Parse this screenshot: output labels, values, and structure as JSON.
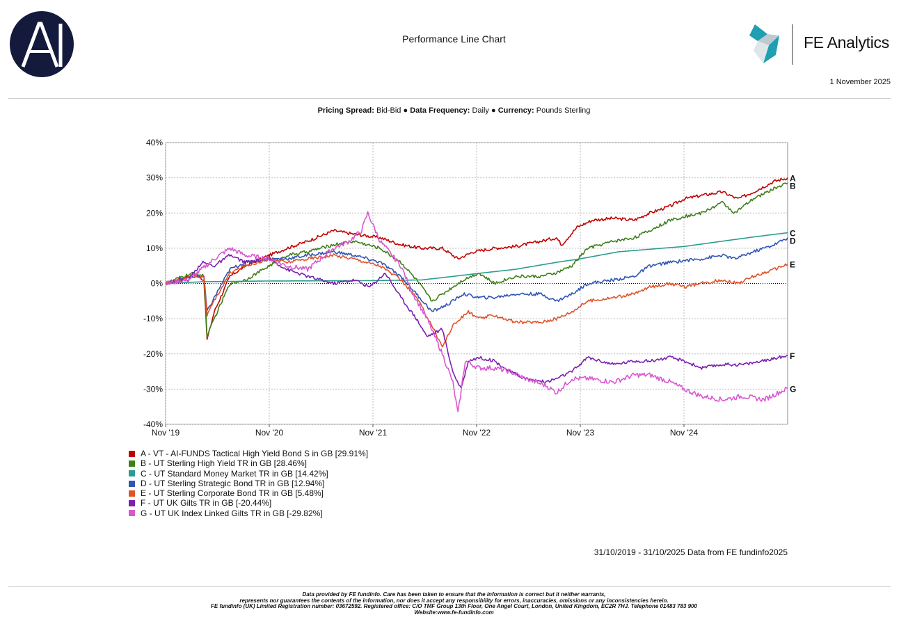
{
  "header": {
    "title": "Performance Line Chart",
    "brand": "FE Analytics",
    "date": "1 November 2025"
  },
  "subtitle": {
    "spread_label": "Pricing Spread:",
    "spread_value": "Bid-Bid",
    "freq_label": "Data Frequency:",
    "freq_value": "Daily",
    "currency_label": "Currency:",
    "currency_value": "Pounds Sterling",
    "separator": "●"
  },
  "range_note": "31/10/2019 - 31/10/2025 Data from FE fundinfo2025",
  "footer": {
    "line1": "Data provided by FE fundinfo. Care has been taken to ensure that the information is correct but it neither warrants,",
    "line2": "represents nor guarantees the contents of the information, nor does it accept any responsibility for errors, inaccuracies, omissions or any inconsistencies herein.",
    "line3": "FE fundinfo (UK) Limited Registration number: 03672592. Registered office: C/O TMF Group 13th Floor, One Angel Court, London, United Kingdom, EC2R 7HJ. Telephone 01483 783 900",
    "line4": "Website:www.fe-fundinfo.com"
  },
  "chart_data": {
    "type": "line",
    "title": "Performance Line Chart",
    "xlabel": "",
    "ylabel": "",
    "xlim": [
      2019.83,
      2025.83
    ],
    "ylim": [
      -40,
      40
    ],
    "yticks": [
      40,
      30,
      20,
      10,
      0,
      -10,
      -20,
      -30,
      -40
    ],
    "ytick_labels": [
      "40%",
      "30%",
      "20%",
      "10%",
      "0%",
      "-10%",
      "-20%",
      "-30%",
      "-40%"
    ],
    "xticks": [
      2019.83,
      2020.83,
      2021.83,
      2022.83,
      2023.83,
      2024.83
    ],
    "xtick_labels": [
      "Nov '19",
      "Nov '20",
      "Nov '21",
      "Nov '22",
      "Nov '23",
      "Nov '24"
    ],
    "grid": true,
    "legend_position": "bottom-left",
    "series": [
      {
        "key": "A",
        "name": "A - VT - AI-FUNDS Tactical High Yield Bond S in GB [29.91%]",
        "color": "#c00000",
        "points": [
          [
            2019.83,
            0
          ],
          [
            2020.0,
            1.5
          ],
          [
            2020.12,
            2.5
          ],
          [
            2020.2,
            1
          ],
          [
            2020.23,
            -16
          ],
          [
            2020.3,
            -8
          ],
          [
            2020.45,
            2
          ],
          [
            2020.6,
            5
          ],
          [
            2020.83,
            8
          ],
          [
            2021.0,
            10
          ],
          [
            2021.2,
            12
          ],
          [
            2021.45,
            15
          ],
          [
            2021.65,
            14
          ],
          [
            2021.9,
            13
          ],
          [
            2022.1,
            11
          ],
          [
            2022.3,
            10
          ],
          [
            2022.5,
            10
          ],
          [
            2022.65,
            7
          ],
          [
            2022.8,
            9
          ],
          [
            2023.0,
            10
          ],
          [
            2023.2,
            10.5
          ],
          [
            2023.45,
            12
          ],
          [
            2023.6,
            13
          ],
          [
            2023.65,
            11
          ],
          [
            2023.8,
            16
          ],
          [
            2023.95,
            18
          ],
          [
            2024.15,
            18.5
          ],
          [
            2024.35,
            18
          ],
          [
            2024.5,
            20
          ],
          [
            2024.7,
            22
          ],
          [
            2024.83,
            24
          ],
          [
            2025.0,
            25
          ],
          [
            2025.2,
            26
          ],
          [
            2025.35,
            24
          ],
          [
            2025.5,
            26
          ],
          [
            2025.7,
            29
          ],
          [
            2025.83,
            30
          ]
        ]
      },
      {
        "key": "B",
        "name": "B - UT Sterling High Yield TR in GB [28.46%]",
        "color": "#3f7f1a",
        "points": [
          [
            2019.83,
            0
          ],
          [
            2020.0,
            2
          ],
          [
            2020.12,
            3
          ],
          [
            2020.2,
            2
          ],
          [
            2020.23,
            -15
          ],
          [
            2020.3,
            -10
          ],
          [
            2020.45,
            0
          ],
          [
            2020.6,
            1
          ],
          [
            2020.83,
            5
          ],
          [
            2021.0,
            8
          ],
          [
            2021.2,
            9
          ],
          [
            2021.45,
            11
          ],
          [
            2021.65,
            12
          ],
          [
            2021.9,
            10
          ],
          [
            2022.1,
            6
          ],
          [
            2022.25,
            1
          ],
          [
            2022.4,
            -5
          ],
          [
            2022.55,
            -2
          ],
          [
            2022.7,
            1
          ],
          [
            2022.85,
            3
          ],
          [
            2023.0,
            0
          ],
          [
            2023.2,
            2
          ],
          [
            2023.45,
            2
          ],
          [
            2023.6,
            3
          ],
          [
            2023.75,
            5
          ],
          [
            2023.9,
            10
          ],
          [
            2024.15,
            12
          ],
          [
            2024.35,
            13
          ],
          [
            2024.5,
            15
          ],
          [
            2024.7,
            18
          ],
          [
            2024.83,
            19
          ],
          [
            2025.0,
            20
          ],
          [
            2025.2,
            23
          ],
          [
            2025.32,
            20
          ],
          [
            2025.5,
            24
          ],
          [
            2025.7,
            27
          ],
          [
            2025.83,
            28.5
          ]
        ]
      },
      {
        "key": "C",
        "name": "C - UT Standard Money Market TR in GB [14.42%]",
        "color": "#2a9d8f",
        "points": [
          [
            2019.83,
            0
          ],
          [
            2020.2,
            0.5
          ],
          [
            2020.83,
            0.7
          ],
          [
            2021.83,
            0.8
          ],
          [
            2022.3,
            1
          ],
          [
            2022.6,
            2
          ],
          [
            2022.83,
            2.8
          ],
          [
            2023.2,
            4
          ],
          [
            2023.6,
            6
          ],
          [
            2023.83,
            7
          ],
          [
            2024.2,
            9
          ],
          [
            2024.83,
            10.5
          ],
          [
            2025.2,
            12
          ],
          [
            2025.5,
            13.2
          ],
          [
            2025.83,
            14.4
          ]
        ]
      },
      {
        "key": "D",
        "name": "D - UT Sterling Strategic Bond TR in GB [12.94%]",
        "color": "#2f55b5",
        "points": [
          [
            2019.83,
            0
          ],
          [
            2020.1,
            2
          ],
          [
            2020.2,
            2
          ],
          [
            2020.23,
            -8
          ],
          [
            2020.3,
            -4
          ],
          [
            2020.45,
            4
          ],
          [
            2020.6,
            6
          ],
          [
            2020.83,
            7
          ],
          [
            2021.0,
            7
          ],
          [
            2021.2,
            8
          ],
          [
            2021.45,
            9
          ],
          [
            2021.65,
            8
          ],
          [
            2021.9,
            6
          ],
          [
            2022.1,
            2
          ],
          [
            2022.25,
            -3
          ],
          [
            2022.4,
            -8
          ],
          [
            2022.55,
            -6
          ],
          [
            2022.7,
            -3
          ],
          [
            2022.85,
            -4
          ],
          [
            2023.0,
            -4
          ],
          [
            2023.2,
            -3
          ],
          [
            2023.45,
            -3
          ],
          [
            2023.6,
            -5
          ],
          [
            2023.75,
            -3
          ],
          [
            2023.9,
            0
          ],
          [
            2024.15,
            1
          ],
          [
            2024.35,
            2
          ],
          [
            2024.5,
            5
          ],
          [
            2024.7,
            6
          ],
          [
            2024.83,
            6.5
          ],
          [
            2025.0,
            7
          ],
          [
            2025.2,
            8
          ],
          [
            2025.32,
            7
          ],
          [
            2025.5,
            9
          ],
          [
            2025.7,
            11
          ],
          [
            2025.83,
            13
          ]
        ]
      },
      {
        "key": "E",
        "name": "E - UT Sterling Corporate Bond TR in GB [5.48%]",
        "color": "#e0522a",
        "points": [
          [
            2019.83,
            0
          ],
          [
            2020.1,
            2
          ],
          [
            2020.2,
            2
          ],
          [
            2020.23,
            -9
          ],
          [
            2020.3,
            -5
          ],
          [
            2020.45,
            3
          ],
          [
            2020.6,
            5
          ],
          [
            2020.83,
            7
          ],
          [
            2021.0,
            6
          ],
          [
            2021.2,
            7
          ],
          [
            2021.45,
            8
          ],
          [
            2021.65,
            7
          ],
          [
            2021.9,
            5
          ],
          [
            2022.1,
            1
          ],
          [
            2022.25,
            -4
          ],
          [
            2022.4,
            -12
          ],
          [
            2022.5,
            -18
          ],
          [
            2022.6,
            -12
          ],
          [
            2022.75,
            -8
          ],
          [
            2022.85,
            -10
          ],
          [
            2023.0,
            -9
          ],
          [
            2023.2,
            -11
          ],
          [
            2023.45,
            -11
          ],
          [
            2023.6,
            -10
          ],
          [
            2023.75,
            -8
          ],
          [
            2023.9,
            -5
          ],
          [
            2024.15,
            -4
          ],
          [
            2024.35,
            -3
          ],
          [
            2024.5,
            -1
          ],
          [
            2024.7,
            0
          ],
          [
            2024.83,
            -1
          ],
          [
            2025.0,
            0
          ],
          [
            2025.2,
            1
          ],
          [
            2025.35,
            0
          ],
          [
            2025.5,
            2
          ],
          [
            2025.7,
            4
          ],
          [
            2025.83,
            5.5
          ]
        ]
      },
      {
        "key": "F",
        "name": "F - UT UK Gilts TR in GB [-20.44%]",
        "color": "#7a1fb0",
        "points": [
          [
            2019.83,
            0
          ],
          [
            2020.05,
            1
          ],
          [
            2020.18,
            6
          ],
          [
            2020.3,
            5
          ],
          [
            2020.45,
            8
          ],
          [
            2020.6,
            6
          ],
          [
            2020.83,
            7
          ],
          [
            2021.0,
            4
          ],
          [
            2021.2,
            2
          ],
          [
            2021.45,
            0
          ],
          [
            2021.65,
            1
          ],
          [
            2021.8,
            -1
          ],
          [
            2021.95,
            3
          ],
          [
            2022.1,
            -4
          ],
          [
            2022.25,
            -10
          ],
          [
            2022.35,
            -15
          ],
          [
            2022.5,
            -13
          ],
          [
            2022.6,
            -25
          ],
          [
            2022.68,
            -30
          ],
          [
            2022.75,
            -22
          ],
          [
            2022.85,
            -21
          ],
          [
            2023.0,
            -22
          ],
          [
            2023.15,
            -25
          ],
          [
            2023.3,
            -27
          ],
          [
            2023.5,
            -28
          ],
          [
            2023.6,
            -27
          ],
          [
            2023.75,
            -25
          ],
          [
            2023.9,
            -21
          ],
          [
            2024.15,
            -23
          ],
          [
            2024.35,
            -22
          ],
          [
            2024.5,
            -22
          ],
          [
            2024.7,
            -21
          ],
          [
            2024.83,
            -22
          ],
          [
            2025.0,
            -24
          ],
          [
            2025.2,
            -23
          ],
          [
            2025.4,
            -23
          ],
          [
            2025.6,
            -22
          ],
          [
            2025.83,
            -20.4
          ]
        ]
      },
      {
        "key": "G",
        "name": "G - UT UK Index Linked Gilts TR in GB [-29.82%]",
        "color": "#d957d1",
        "points": [
          [
            2019.83,
            0
          ],
          [
            2020.05,
            1
          ],
          [
            2020.18,
            4
          ],
          [
            2020.3,
            7
          ],
          [
            2020.45,
            10
          ],
          [
            2020.6,
            8
          ],
          [
            2020.83,
            7
          ],
          [
            2021.0,
            5
          ],
          [
            2021.2,
            4
          ],
          [
            2021.45,
            10
          ],
          [
            2021.6,
            12
          ],
          [
            2021.72,
            15
          ],
          [
            2021.78,
            20
          ],
          [
            2021.9,
            12
          ],
          [
            2022.1,
            5
          ],
          [
            2022.2,
            -2
          ],
          [
            2022.35,
            -10
          ],
          [
            2022.5,
            -20
          ],
          [
            2022.6,
            -28
          ],
          [
            2022.65,
            -37
          ],
          [
            2022.72,
            -22
          ],
          [
            2022.85,
            -24
          ],
          [
            2023.0,
            -24
          ],
          [
            2023.15,
            -25
          ],
          [
            2023.3,
            -27
          ],
          [
            2023.5,
            -29
          ],
          [
            2023.6,
            -31
          ],
          [
            2023.75,
            -27
          ],
          [
            2023.9,
            -27
          ],
          [
            2024.15,
            -28
          ],
          [
            2024.35,
            -26
          ],
          [
            2024.5,
            -26
          ],
          [
            2024.7,
            -28
          ],
          [
            2024.83,
            -30
          ],
          [
            2025.0,
            -32
          ],
          [
            2025.2,
            -33
          ],
          [
            2025.4,
            -32
          ],
          [
            2025.6,
            -33
          ],
          [
            2025.83,
            -29.8
          ]
        ]
      }
    ]
  }
}
